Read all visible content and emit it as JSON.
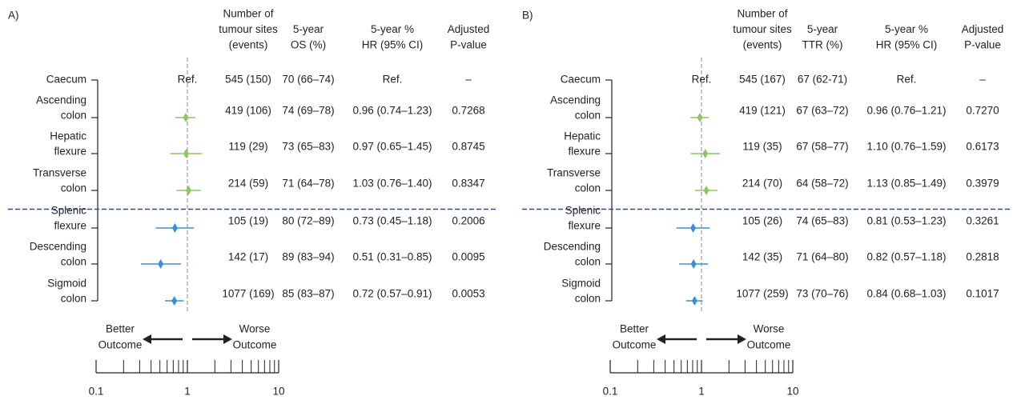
{
  "chart_data": [
    {
      "type": "forest",
      "panel_label": "A)",
      "headers": [
        [
          "Number of",
          "tumour sites",
          "(events)"
        ],
        [
          "5-year",
          "OS (%)"
        ],
        [
          "5-year %",
          "HR (95% CI)"
        ],
        [
          "Adjusted",
          "P-value"
        ]
      ],
      "categories": [
        [
          "Caecum"
        ],
        [
          "Ascending",
          "colon"
        ],
        [
          "Hepatic",
          "flexure"
        ],
        [
          "Transverse",
          "colon"
        ],
        [
          "Splenic",
          "flexure"
        ],
        [
          "Descending",
          "colon"
        ],
        [
          "Sigmoid",
          "colon"
        ]
      ],
      "events": [
        "545 (150)",
        "419 (106)",
        "119 (29)",
        "214 (59)",
        "105 (19)",
        "142 (17)",
        "1077 (169)"
      ],
      "survival": [
        "70 (66–74)",
        "74 (69–78)",
        "73 (65–83)",
        "71 (64–78)",
        "80 (72–89)",
        "89 (83–94)",
        "85 (83–87)"
      ],
      "values": [
        null,
        0.96,
        0.97,
        1.03,
        0.73,
        0.51,
        0.72
      ],
      "value_labels": [
        "Ref.",
        "0.96 (0.74–1.23)",
        "0.97 (0.65–1.45)",
        "1.03 (0.76–1.40)",
        "0.73 (0.45–1.18)",
        "0.51 (0.31–0.85)",
        "0.72 (0.57–0.91)"
      ],
      "ci_low": [
        null,
        0.74,
        0.65,
        0.76,
        0.45,
        0.31,
        0.57
      ],
      "ci_high": [
        null,
        1.23,
        1.45,
        1.4,
        1.18,
        0.85,
        0.91
      ],
      "p_values": [
        "–",
        "0.7268",
        "0.8745",
        "0.8347",
        "0.2006",
        "0.0095",
        "0.0053"
      ],
      "colors": [
        null,
        "#8cc665",
        "#8cc665",
        "#8cc665",
        "#3a8fd6",
        "#3a8fd6",
        "#3a8fd6"
      ],
      "better_label": [
        "Better",
        "Outcome"
      ],
      "worse_label": [
        "Worse",
        "Outcome"
      ],
      "log_x": true,
      "ref_line": 1,
      "xlim": [
        0.1,
        10
      ],
      "xticks": [
        0.1,
        1,
        10
      ],
      "minor_xticks": [
        0.2,
        0.3,
        0.4,
        0.5,
        0.6,
        0.7,
        0.8,
        0.9,
        2,
        3,
        4,
        5,
        6,
        7,
        8,
        9
      ]
    },
    {
      "type": "forest",
      "panel_label": "B)",
      "headers": [
        [
          "Number of",
          "tumour sites",
          "(events)"
        ],
        [
          "5-year",
          "TTR (%)"
        ],
        [
          "5-year %",
          "HR (95% CI)"
        ],
        [
          "Adjusted",
          "P-value"
        ]
      ],
      "categories": [
        [
          "Caecum"
        ],
        [
          "Ascending",
          "colon"
        ],
        [
          "Hepatic",
          "flexure"
        ],
        [
          "Transverse",
          "colon"
        ],
        [
          "Splenic",
          "flexure"
        ],
        [
          "Descending",
          "colon"
        ],
        [
          "Sigmoid",
          "colon"
        ]
      ],
      "events": [
        "545 (167)",
        "419 (121)",
        "119 (35)",
        "214 (70)",
        "105 (26)",
        "142 (35)",
        "1077 (259)"
      ],
      "survival": [
        "67 (62-71)",
        "67 (63–72)",
        "67 (58–77)",
        "64 (58–72)",
        "74 (65–83)",
        "71 (64–80)",
        "73 (70–76)"
      ],
      "values": [
        null,
        0.96,
        1.1,
        1.13,
        0.81,
        0.82,
        0.84
      ],
      "value_labels": [
        "Ref.",
        "0.96 (0.76–1.21)",
        "1.10 (0.76–1.59)",
        "1.13 (0.85–1.49)",
        "0.81 (0.53–1.23)",
        "0.82 (0.57–1.18)",
        "0.84 (0.68–1.03)"
      ],
      "ci_low": [
        null,
        0.76,
        0.76,
        0.85,
        0.53,
        0.57,
        0.68
      ],
      "ci_high": [
        null,
        1.21,
        1.59,
        1.49,
        1.23,
        1.18,
        1.03
      ],
      "p_values": [
        "–",
        "0.7270",
        "0.6173",
        "0.3979",
        "0.3261",
        "0.2818",
        "0.1017"
      ],
      "colors": [
        null,
        "#8cc665",
        "#8cc665",
        "#8cc665",
        "#3a8fd6",
        "#3a8fd6",
        "#3a8fd6"
      ],
      "better_label": [
        "Better",
        "Outcome"
      ],
      "worse_label": [
        "Worse",
        "Outcome"
      ],
      "log_x": true,
      "ref_line": 1,
      "xlim": [
        0.1,
        10
      ],
      "xticks": [
        0.1,
        1,
        10
      ],
      "minor_xticks": [
        0.2,
        0.3,
        0.4,
        0.5,
        0.6,
        0.7,
        0.8,
        0.9,
        2,
        3,
        4,
        5,
        6,
        7,
        8,
        9
      ]
    }
  ]
}
